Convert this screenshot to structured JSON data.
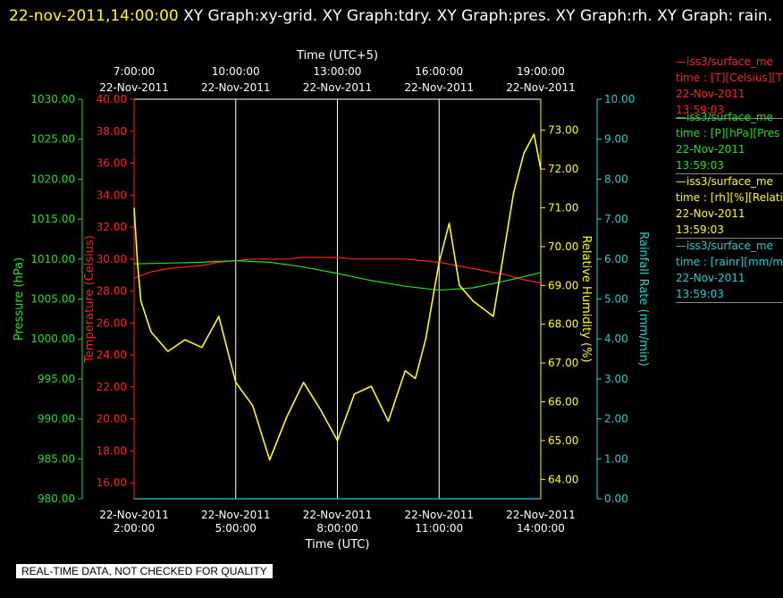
{
  "header": {
    "timestamp": "22-nov-2011,14:00:00",
    "title": "XY Graph:xy-grid.  XY Graph:tdry.  XY Graph:pres.  XY Graph:rh.  XY Graph: rain."
  },
  "footer": "REAL-TIME DATA, NOT CHECKED FOR QUALITY",
  "colors": {
    "temperature": "#ff2020",
    "pressure": "#20e020",
    "humidity": "#ffff00",
    "rain": "#20d0d0",
    "grid": "#ffffff"
  },
  "legend": [
    {
      "line1": "—iss3/surface_me",
      "line2": "time : [T][Celsius][T",
      "line3": "22-Nov-2011",
      "line4": "13:59:03",
      "color": "#ff2020"
    },
    {
      "line1": "—iss3/surface_me",
      "line2": "time : [P][hPa][Pres",
      "line3": "22-Nov-2011",
      "line4": "13:59:03",
      "color": "#20e020"
    },
    {
      "line1": "—iss3/surface_me",
      "line2": "time : [rh][%][Relati",
      "line3": "22-Nov-2011",
      "line4": "13:59:03",
      "color": "#ffff00"
    },
    {
      "line1": "—iss3/surface_me",
      "line2": "time : [rainr][mm/mi",
      "line3": "22-Nov-2011",
      "line4": "13:59:03",
      "color": "#20d0d0"
    }
  ],
  "chart_data": {
    "type": "line",
    "x_bottom_label": "Time (UTC)",
    "x_top_label": "Time (UTC+5)",
    "x_range_hours_utc": [
      2,
      14
    ],
    "bottom_ticks": [
      {
        "date": "22-Nov-2011",
        "time": "2:00:00",
        "hour": 2
      },
      {
        "date": "22-Nov-2011",
        "time": "5:00:00",
        "hour": 5
      },
      {
        "date": "22-Nov-2011",
        "time": "8:00:00",
        "hour": 8
      },
      {
        "date": "22-Nov-2011",
        "time": "11:00:00",
        "hour": 11
      },
      {
        "date": "22-Nov-2011",
        "time": "14:00:00",
        "hour": 14
      }
    ],
    "top_ticks": [
      {
        "time": "7:00:00",
        "date": "22-Nov-2011",
        "hour": 2
      },
      {
        "time": "10:00:00",
        "date": "22-Nov-2011",
        "hour": 5
      },
      {
        "time": "13:00:00",
        "date": "22-Nov-2011",
        "hour": 8
      },
      {
        "time": "16:00:00",
        "date": "22-Nov-2011",
        "hour": 11
      },
      {
        "time": "19:00:00",
        "date": "22-Nov-2011",
        "hour": 14
      }
    ],
    "axes": {
      "pressure": {
        "label": "Pressure (hPa)",
        "range": [
          980,
          1030
        ],
        "ticks": [
          "980.00",
          "985.00",
          "990.00",
          "995.00",
          "1000.00",
          "1005.00",
          "1010.00",
          "1015.00",
          "1020.00",
          "1025.00",
          "1030.00"
        ]
      },
      "temperature": {
        "label": "Temperature (Celsius)",
        "range": [
          15,
          40
        ],
        "ticks": [
          "16.00",
          "18.00",
          "20.00",
          "22.00",
          "24.00",
          "26.00",
          "28.00",
          "30.00",
          "32.00",
          "34.00",
          "36.00",
          "38.00",
          "40.00"
        ]
      },
      "humidity": {
        "label": "Relative Humidity (%)",
        "range": [
          63.5,
          73.8
        ],
        "ticks": [
          "64.00",
          "65.00",
          "66.00",
          "67.00",
          "68.00",
          "69.00",
          "70.00",
          "71.00",
          "72.00",
          "73.00"
        ]
      },
      "rain": {
        "label": "Rainfall Rate (mm/min)",
        "range": [
          0,
          10
        ],
        "ticks": [
          "0.00",
          "1.00",
          "2.00",
          "3.00",
          "4.00",
          "5.00",
          "6.00",
          "7.00",
          "8.00",
          "9.00",
          "10.00"
        ]
      }
    },
    "series": [
      {
        "name": "Temperature",
        "axis": "temperature",
        "x": [
          2,
          2.5,
          3,
          3.5,
          4,
          4.5,
          5,
          5.5,
          6,
          6.5,
          7,
          7.5,
          8,
          8.5,
          9,
          9.5,
          10,
          10.5,
          11,
          11.5,
          12,
          12.5,
          13,
          13.5,
          14
        ],
        "y": [
          28.8,
          29.2,
          29.4,
          29.5,
          29.6,
          29.8,
          29.9,
          30.0,
          30.0,
          30.0,
          30.1,
          30.1,
          30.1,
          30.0,
          30.0,
          30.0,
          30.0,
          29.9,
          29.8,
          29.6,
          29.4,
          29.2,
          29.0,
          28.7,
          28.5
        ]
      },
      {
        "name": "Pressure",
        "axis": "pressure",
        "x": [
          2,
          3,
          4,
          5,
          6,
          7,
          8,
          9,
          10,
          11,
          12,
          13,
          14
        ],
        "y": [
          1009.4,
          1009.5,
          1009.6,
          1009.8,
          1009.6,
          1009.0,
          1008.2,
          1007.3,
          1006.6,
          1006.1,
          1006.4,
          1007.3,
          1008.3
        ]
      },
      {
        "name": "Relative Humidity",
        "axis": "humidity",
        "x": [
          2,
          2.1,
          2.2,
          2.5,
          3,
          3.5,
          4,
          4.5,
          5,
          5.5,
          6,
          6.5,
          7,
          7.5,
          8,
          8.5,
          9,
          9.5,
          10,
          10.3,
          10.6,
          11,
          11.3,
          11.6,
          12,
          12.3,
          12.6,
          12.9,
          13.2,
          13.5,
          13.8,
          14
        ],
        "y": [
          71.0,
          69.6,
          68.6,
          67.8,
          67.3,
          67.6,
          67.4,
          68.2,
          66.5,
          65.9,
          64.5,
          65.6,
          66.5,
          65.8,
          65.0,
          66.2,
          66.4,
          65.5,
          66.8,
          66.6,
          67.6,
          69.6,
          70.6,
          69.0,
          68.6,
          68.4,
          68.2,
          69.8,
          71.4,
          72.4,
          72.9,
          72.0
        ]
      },
      {
        "name": "Rainfall Rate",
        "axis": "rain",
        "x": [
          2,
          14
        ],
        "y": [
          0.0,
          0.0
        ]
      }
    ]
  }
}
